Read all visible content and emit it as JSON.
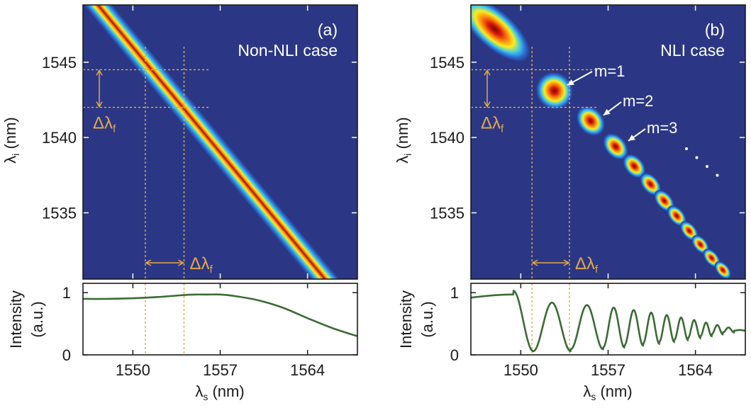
{
  "colors": {
    "background": "#2b3784",
    "guide": "#e3a94c",
    "curve": "#3b6b35",
    "annotation": "#ffffff",
    "frame": "#1a1a1a"
  },
  "chart_data": [
    {
      "panel": "a",
      "type": "heatmap",
      "label": "(a)",
      "title": "Non-NLI case",
      "xlabel_sym": "λ",
      "xlabel_sub": "s",
      "xlabel_unit": " (nm)",
      "ylabel_sym": "λ",
      "ylabel_sub": "i",
      "ylabel_unit": " (nm)",
      "xlim": [
        1546.0,
        1568.0
      ],
      "ylim": [
        1530.6,
        1548.8
      ],
      "xticks": [
        1550,
        1557,
        1564
      ],
      "xtick_labels": [
        "1550",
        "1557",
        "1564"
      ],
      "yticks": [
        1535,
        1540,
        1545
      ],
      "ytick_labels": [
        "1535",
        "1540",
        "1545"
      ],
      "heatmap": {
        "kind": "ridge",
        "line_sum": 3096.0,
        "width_nm": 0.45
      },
      "guides": {
        "x": [
          1551.0,
          1554.1
        ],
        "y": [
          1544.5,
          1542.0
        ]
      },
      "delta_label": "Δλ",
      "delta_sub": "f",
      "intensity": {
        "ylabel": "Intensity",
        "ylabel2": "(a.u.)",
        "ylim": [
          0,
          1.15
        ],
        "yticks": [
          0,
          1
        ],
        "ytick_labels": [
          "0",
          "1"
        ],
        "x": [
          1546,
          1548,
          1550,
          1552,
          1554,
          1555,
          1556,
          1557,
          1558,
          1560,
          1562,
          1564,
          1566,
          1568
        ],
        "values": [
          0.9,
          0.9,
          0.91,
          0.93,
          0.96,
          0.97,
          0.97,
          0.97,
          0.95,
          0.88,
          0.76,
          0.59,
          0.43,
          0.3
        ]
      }
    },
    {
      "panel": "b",
      "type": "heatmap",
      "label": "(b)",
      "title": "NLI case",
      "xlabel_sym": "λ",
      "xlabel_sub": "s",
      "xlabel_unit": " (nm)",
      "ylabel_sym": "λ",
      "ylabel_sub": "i",
      "ylabel_unit": " (nm)",
      "xlim": [
        1546.0,
        1568.0
      ],
      "ylim": [
        1530.6,
        1548.8
      ],
      "xticks": [
        1550,
        1557,
        1564
      ],
      "xtick_labels": [
        "1550",
        "1557",
        "1564"
      ],
      "yticks": [
        1535,
        1540,
        1545
      ],
      "ytick_labels": [
        "1535",
        "1540",
        "1545"
      ],
      "heatmap": {
        "kind": "islands",
        "tail": [
          {
            "x1": 1546.0,
            "y1": 1548.6,
            "x2": 1549.8,
            "y2": 1545.8
          }
        ],
        "islands": [
          {
            "x": 1552.7,
            "y": 1543.1,
            "rx": 0.8,
            "ry": 0.7
          },
          {
            "x": 1555.6,
            "y": 1541.1,
            "rx": 0.55,
            "ry": 0.6
          },
          {
            "x": 1557.6,
            "y": 1539.4,
            "rx": 0.45,
            "ry": 0.55
          },
          {
            "x": 1559.1,
            "y": 1538.1,
            "rx": 0.4,
            "ry": 0.5
          },
          {
            "x": 1560.4,
            "y": 1536.9,
            "rx": 0.36,
            "ry": 0.48
          },
          {
            "x": 1561.5,
            "y": 1535.8,
            "rx": 0.34,
            "ry": 0.46
          },
          {
            "x": 1562.5,
            "y": 1534.8,
            "rx": 0.32,
            "ry": 0.44
          },
          {
            "x": 1563.5,
            "y": 1533.8,
            "rx": 0.3,
            "ry": 0.42
          },
          {
            "x": 1564.4,
            "y": 1532.9,
            "rx": 0.29,
            "ry": 0.4
          },
          {
            "x": 1565.3,
            "y": 1532.0,
            "rx": 0.28,
            "ry": 0.4
          },
          {
            "x": 1566.2,
            "y": 1531.2,
            "rx": 0.27,
            "ry": 0.38
          }
        ]
      },
      "guides": {
        "x": [
          1550.9,
          1553.9
        ],
        "y": [
          1544.5,
          1542.0
        ]
      },
      "delta_label": "Δλ",
      "delta_sub": "f",
      "mode_labels": [
        "m=1",
        "m=2",
        "m=3"
      ],
      "ellipsis_dots": 4,
      "intensity": {
        "ylabel": "Intensity",
        "ylabel2": "(a.u.)",
        "ylim": [
          0,
          1.15
        ],
        "yticks": [
          0,
          1
        ],
        "ytick_labels": [
          "0",
          "1"
        ],
        "valleys": [
          1551.0,
          1554.0,
          1556.6,
          1558.3,
          1559.8,
          1561.1,
          1562.3,
          1563.4,
          1564.4,
          1565.3,
          1566.2,
          1567.1
        ],
        "peak_x": 1549.4,
        "peak_value": 0.97,
        "start_value": 0.92
      }
    }
  ]
}
